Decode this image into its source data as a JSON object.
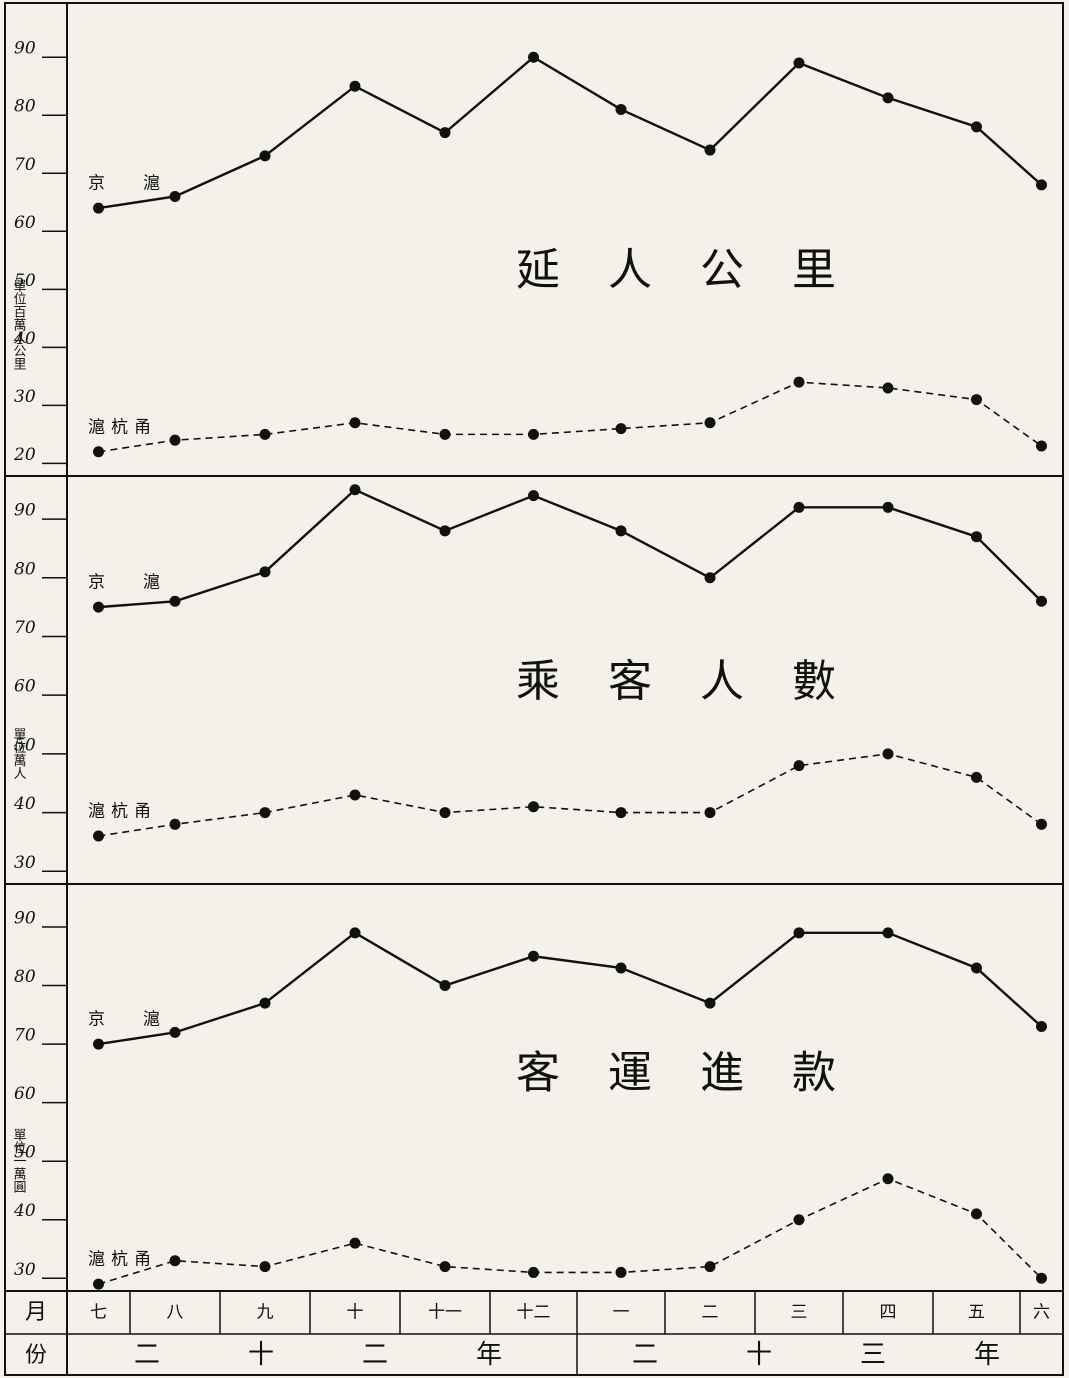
{
  "chart_data": [
    {
      "type": "line",
      "title": "延人公里",
      "y_label": "單位百萬人公里",
      "ylim": [
        18,
        99
      ],
      "yticks": [
        20,
        30,
        40,
        50,
        60,
        70,
        80,
        90
      ],
      "series": [
        {
          "name": "京滬",
          "color": "#111111",
          "dash": false,
          "values": [
            64,
            66,
            73,
            85,
            77,
            90,
            81,
            74,
            89,
            83,
            78,
            68
          ]
        },
        {
          "name": "滬杭甬",
          "color": "#111111",
          "dash": true,
          "values": [
            22,
            24,
            25,
            27,
            25,
            25,
            26,
            27,
            34,
            33,
            31,
            23
          ]
        }
      ]
    },
    {
      "type": "line",
      "title": "乘客人數",
      "y_label": "單位萬人",
      "ylim": [
        28,
        97
      ],
      "yticks": [
        30,
        40,
        50,
        60,
        70,
        80,
        90
      ],
      "series": [
        {
          "name": "京滬",
          "color": "#111111",
          "dash": false,
          "values": [
            75,
            76,
            81,
            95,
            88,
            94,
            88,
            80,
            92,
            92,
            87,
            76
          ]
        },
        {
          "name": "滬杭甬",
          "color": "#111111",
          "dash": true,
          "values": [
            36,
            38,
            40,
            43,
            40,
            41,
            40,
            40,
            48,
            50,
            46,
            38
          ]
        }
      ]
    },
    {
      "type": "line",
      "title": "客運進款",
      "y_label": "單位一萬圓",
      "ylim": [
        28,
        97
      ],
      "yticks": [
        30,
        40,
        50,
        60,
        70,
        80,
        90
      ],
      "series": [
        {
          "name": "京滬",
          "color": "#111111",
          "dash": false,
          "values": [
            70,
            72,
            77,
            89,
            80,
            85,
            83,
            77,
            89,
            89,
            83,
            73
          ]
        },
        {
          "name": "滬杭甬",
          "color": "#111111",
          "dash": true,
          "values": [
            29,
            33,
            32,
            36,
            32,
            31,
            31,
            32,
            40,
            47,
            41,
            30
          ]
        }
      ]
    }
  ],
  "x_axis": {
    "row_labels": [
      "月",
      "份"
    ],
    "categories": [
      "七",
      "八",
      "九",
      "十",
      "十一",
      "十二",
      "一",
      "二",
      "三",
      "四",
      "五",
      "六"
    ],
    "years": [
      "二十二年",
      "二十三年"
    ]
  }
}
